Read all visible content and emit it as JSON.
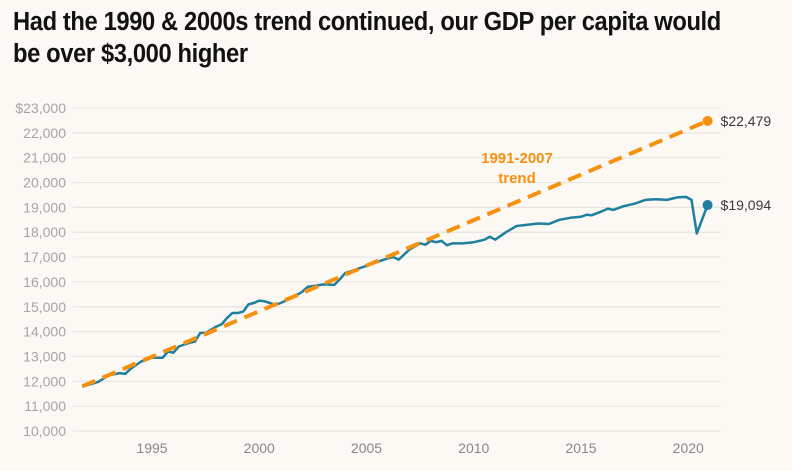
{
  "title": "Had the 1990 & 2000s trend continued, our GDP per capita would be over $3,000 higher",
  "colors": {
    "background": "#fcf8f4",
    "actual": "#1f7f9e",
    "trend": "#f5910f",
    "grid": "#e8e4e0"
  },
  "chart_data": {
    "type": "line",
    "title": "Had the 1990 & 2000s trend continued, our GDP per capita would be over $3,000 higher",
    "xlabel": "",
    "ylabel": "",
    "xlim": [
      1990.0,
      2021.7
    ],
    "ylim": [
      10000,
      23000
    ],
    "grid": true,
    "y_ticks": [
      10000,
      11000,
      12000,
      13000,
      14000,
      15000,
      16000,
      17000,
      18000,
      19000,
      20000,
      21000,
      22000,
      23000
    ],
    "y_tick_labels": [
      "10,000",
      "11,000",
      "12,000",
      "13,000",
      "14,000",
      "15,000",
      "16,000",
      "17,000",
      "18,000",
      "19,000",
      "20,000",
      "21,000",
      "22,000",
      "$23,000"
    ],
    "x_ticks": [
      1995,
      2000,
      2005,
      2010,
      2015,
      2020
    ],
    "x_tick_labels": [
      "1995",
      "2000",
      "2005",
      "2010",
      "2015",
      "2020"
    ],
    "annotations": [
      {
        "text_lines": [
          "1991-2007",
          "trend"
        ],
        "series": "1991-2007 trend"
      }
    ],
    "series": [
      {
        "name": "GDP per capita",
        "style": "solid",
        "end_label": "$19,094",
        "x": [
          1991.75,
          1992.0,
          1992.5,
          1993.0,
          1993.5,
          1993.75,
          1994.0,
          1994.5,
          1995.0,
          1995.5,
          1995.75,
          1996.0,
          1996.25,
          1996.75,
          1997.0,
          1997.25,
          1997.5,
          1998.0,
          1998.25,
          1998.5,
          1998.75,
          1999.0,
          1999.25,
          1999.5,
          1999.75,
          2000.0,
          2000.25,
          2000.5,
          2000.75,
          2001.0,
          2001.5,
          2002.0,
          2002.25,
          2002.5,
          2003.0,
          2003.5,
          2003.75,
          2004.0,
          2004.5,
          2005.0,
          2005.5,
          2006.0,
          2006.25,
          2006.5,
          2007.0,
          2007.5,
          2007.75,
          2008.0,
          2008.25,
          2008.5,
          2008.75,
          2009.0,
          2009.5,
          2010.0,
          2010.5,
          2010.75,
          2011.0,
          2011.5,
          2012.0,
          2012.5,
          2013.0,
          2013.5,
          2014.0,
          2014.5,
          2015.0,
          2015.25,
          2015.5,
          2016.0,
          2016.25,
          2016.5,
          2017.0,
          2017.5,
          2018.0,
          2018.5,
          2019.0,
          2019.5,
          2019.9,
          2020.15,
          2020.4,
          2020.9
        ],
        "values": [
          11780,
          11850,
          11980,
          12250,
          12330,
          12300,
          12500,
          12800,
          12950,
          12950,
          13200,
          13150,
          13400,
          13550,
          13600,
          13950,
          13950,
          14200,
          14300,
          14550,
          14750,
          14750,
          14800,
          15100,
          15150,
          15250,
          15220,
          15150,
          15080,
          15150,
          15350,
          15600,
          15800,
          15830,
          15900,
          15880,
          16100,
          16350,
          16500,
          16650,
          16800,
          16950,
          17000,
          16900,
          17300,
          17550,
          17500,
          17650,
          17600,
          17650,
          17480,
          17550,
          17550,
          17600,
          17700,
          17820,
          17700,
          18000,
          18250,
          18300,
          18350,
          18330,
          18500,
          18580,
          18620,
          18700,
          18680,
          18850,
          18950,
          18900,
          19050,
          19150,
          19300,
          19330,
          19300,
          19400,
          19420,
          19300,
          17950,
          19094
        ]
      },
      {
        "name": "1991-2007 trend",
        "style": "dashed",
        "end_label": "$22,479",
        "x": [
          1991.75,
          2020.9
        ],
        "values": [
          11800,
          22479
        ]
      }
    ]
  }
}
